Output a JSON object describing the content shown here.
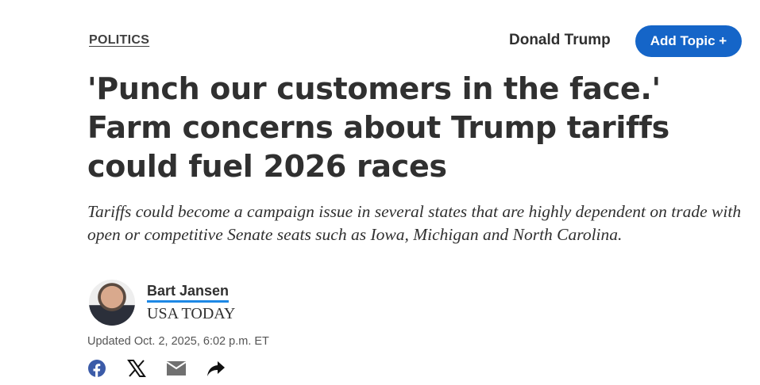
{
  "header": {
    "section": "POLITICS",
    "topic_tag": "Donald Trump",
    "add_topic_label": "Add Topic +",
    "accent": "#1565c8"
  },
  "article": {
    "headline": "'Punch our customers in the face.' Farm concerns about Trump tariffs could fuel 2026 races",
    "dek": "Tariffs could become a campaign issue in several states that are highly dependent on trade with open or competitive Senate seats such as Iowa, Michigan and North Carolina.",
    "author": "Bart Jansen",
    "publication": "USA TODAY",
    "updated": "Updated Oct. 2, 2025, 6:02 p.m. ET"
  },
  "share": [
    "facebook-icon",
    "x-icon",
    "email-icon",
    "share-icon"
  ]
}
